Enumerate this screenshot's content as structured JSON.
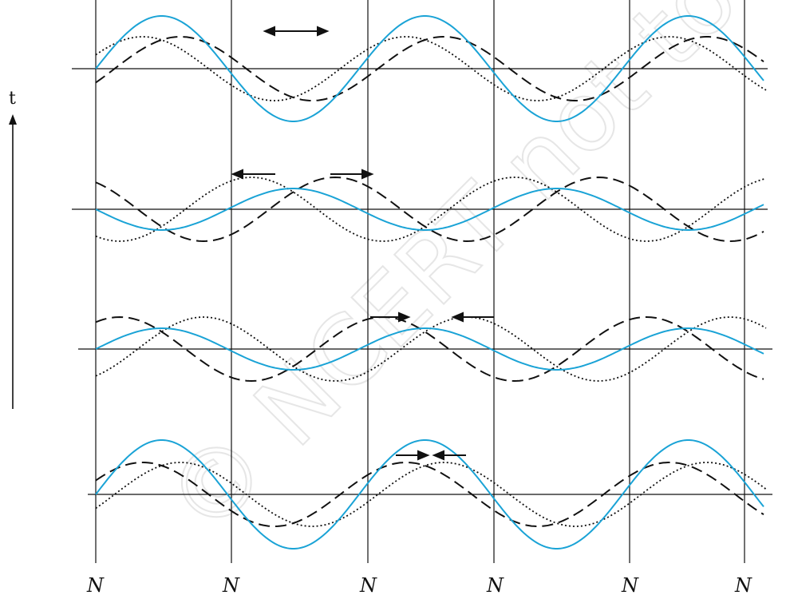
{
  "axis": {
    "label": "t"
  },
  "node_labels": [
    "N",
    "N",
    "N",
    "N",
    "N",
    "N"
  ],
  "watermark": "© NCERT not to be republished",
  "colors": {
    "resultant": "#1aa3d6",
    "component_wave": "#111111",
    "grid": "#111111",
    "watermark": "#e6e6e6"
  },
  "waves": {
    "resultant_style": "solid",
    "wave_a_style": "dashed",
    "wave_b_style": "dotted",
    "snapshots": [
      {
        "name": "row-1",
        "resultant_amplitude": 1.0,
        "components": "in-phase",
        "arrows": "apart"
      },
      {
        "name": "row-2",
        "resultant_amplitude": 0.45,
        "components": "partially out of phase",
        "arrows": "apart"
      },
      {
        "name": "row-3",
        "resultant_amplitude": 0.45,
        "components": "partially out of phase",
        "arrows": "together"
      },
      {
        "name": "row-4",
        "resultant_amplitude": 1.0,
        "components": "in-phase",
        "arrows": "together"
      }
    ]
  }
}
